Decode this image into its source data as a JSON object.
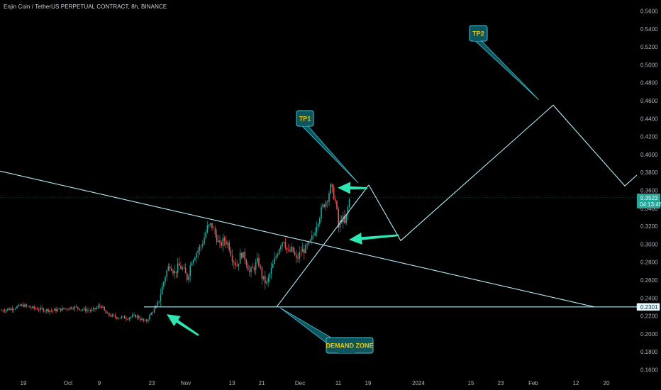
{
  "header": {
    "title": "Enjin Coin / TetherUS PERPETUAL CONTRACT, 8h, BINANCE"
  },
  "chart_data": {
    "type": "candlestick",
    "ylim": [
      0.16,
      0.56
    ],
    "y_ticks": [
      "0.5600",
      "0.5400",
      "0.5200",
      "0.5000",
      "0.4800",
      "0.4600",
      "0.4400",
      "0.4200",
      "0.4000",
      "0.3800",
      "0.3600",
      "0.3400",
      "0.3200",
      "0.3000",
      "0.2800",
      "0.2600",
      "0.2400",
      "0.2200",
      "0.2000",
      "0.1800",
      "0.1600"
    ],
    "x_ticks": [
      "19",
      "Oct",
      "9",
      "23",
      "Nov",
      "13",
      "21",
      "Dec",
      "11",
      "19",
      "2024",
      "15",
      "23",
      "Feb",
      "12",
      "20"
    ],
    "current_price": "0.3523",
    "countdown": "04:13:48",
    "demand_level": "0.2301",
    "colors": {
      "up": "#26a69a",
      "down": "#ef5350",
      "lines": "#b3ecf8",
      "arrows": "#2fe6b2",
      "callout_bg": "#0f5560",
      "callout_border": "#3fc3d3",
      "callout_text": "#e8c900"
    },
    "annotations": [
      {
        "label": "TP1"
      },
      {
        "label": "TP2"
      },
      {
        "label": "DEMAND ZONE"
      }
    ]
  }
}
